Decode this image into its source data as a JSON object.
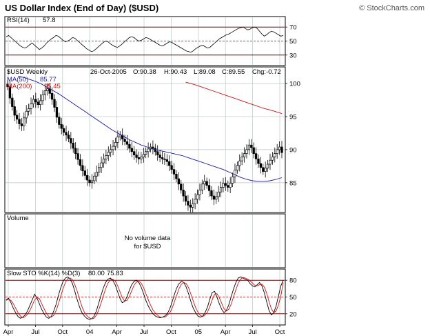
{
  "header": {
    "title": "US Dollar Index (End of Day) ($USD)",
    "brand": "© StockCharts.com"
  },
  "colors": {
    "frame": "#000000",
    "grid": "#b9c6c6",
    "ma50": "#1a1a9a",
    "ma200": "#cc1111",
    "k_line": "#000000",
    "d_line": "#cc1111",
    "candle": "#000000",
    "dashed_mid": "#aa0000"
  },
  "chart_data": [
    {
      "type": "line",
      "panel": "rsi",
      "label": "RSI(14)",
      "last_value": "57.8",
      "ylim": [
        15,
        85
      ],
      "y_ticks": [
        "70",
        "50",
        "30"
      ],
      "reference_lines": [
        70,
        50,
        30
      ],
      "series": [
        {
          "name": "RSI(14)",
          "values": [
            56,
            58,
            55,
            52,
            49,
            46,
            43,
            41,
            40,
            42,
            45,
            47,
            44,
            41,
            38,
            40,
            43,
            47,
            50,
            53,
            55,
            58,
            57,
            54,
            51,
            49,
            50,
            52,
            55,
            54,
            51,
            48,
            45,
            42,
            39,
            37,
            35,
            36,
            39,
            42,
            45,
            48,
            50,
            49,
            46,
            44,
            42,
            41,
            43,
            46,
            49,
            52,
            55,
            56,
            55,
            52,
            50,
            51,
            53,
            55,
            54,
            52,
            50,
            48,
            46,
            44,
            43,
            45,
            47,
            49,
            48,
            46,
            44,
            42,
            40,
            38,
            36,
            35,
            34,
            36,
            39,
            41,
            43,
            44,
            42,
            40,
            41,
            44,
            47,
            50,
            53,
            55,
            57,
            59,
            60,
            62,
            64,
            66,
            68,
            69,
            70,
            68,
            66,
            67,
            69,
            70,
            68,
            64,
            60,
            57,
            59,
            62,
            64,
            63,
            61,
            59,
            57,
            58
          ]
        }
      ]
    },
    {
      "type": "candlestick",
      "panel": "price",
      "label": "$USD Weekly",
      "date_text": "26-Oct-2005",
      "ohlc_text": {
        "open": "O:90.38",
        "high": "H:90.43",
        "low": "L:89.08",
        "close": "C:89.55",
        "change": "Chg:-0.72"
      },
      "legend": [
        {
          "name": "MA(50)",
          "value": "85.77"
        },
        {
          "name": "MA(200)",
          "value": "95.45"
        }
      ],
      "ylim": [
        80.5,
        102.5
      ],
      "y_ticks": [
        "100",
        "95",
        "90",
        "85"
      ],
      "closes": [
        99.5,
        97.8,
        96.5,
        95.2,
        94.6,
        93.9,
        93.6,
        94.8,
        95.8,
        96.2,
        96.9,
        97.6,
        97.2,
        96.8,
        97.4,
        98.3,
        98.9,
        99.2,
        98.5,
        97.6,
        96.4,
        94.9,
        93.8,
        93.2,
        92.6,
        92.2,
        91.7,
        91.0,
        90.2,
        89.4,
        88.5,
        87.6,
        86.8,
        86.1,
        85.4,
        85.0,
        85.3,
        86.0,
        86.6,
        87.3,
        88.0,
        88.6,
        89.1,
        89.6,
        90.0,
        90.5,
        91.1,
        91.9,
        92.2,
        91.6,
        91.2,
        90.8,
        90.2,
        89.7,
        89.2,
        88.8,
        88.6,
        88.9,
        89.3,
        89.7,
        90.1,
        90.4,
        90.2,
        89.7,
        89.2,
        88.8,
        88.6,
        88.5,
        88.2,
        87.6,
        87.0,
        86.3,
        85.6,
        84.8,
        83.9,
        83.0,
        82.2,
        81.6,
        81.3,
        81.8,
        82.5,
        83.2,
        83.9,
        84.8,
        85.2,
        84.6,
        83.8,
        83.0,
        82.5,
        82.9,
        83.6,
        84.3,
        84.9,
        84.6,
        84.3,
        84.9,
        85.9,
        86.9,
        87.6,
        88.3,
        88.9,
        89.4,
        90.0,
        90.7,
        90.3,
        89.4,
        88.6,
        87.9,
        87.3,
        86.7,
        87.2,
        87.8,
        88.4,
        88.9,
        89.4,
        90.0,
        90.4,
        89.55
      ],
      "ma50": [
        101.1,
        100.9,
        100.6,
        100.3,
        99.9,
        99.4,
        98.9,
        98.4,
        97.8,
        97.2,
        96.6,
        96.0,
        95.4,
        94.8,
        94.2,
        93.6,
        93.0,
        92.5,
        92.0,
        91.5,
        91.1,
        90.7,
        90.4,
        90.1,
        89.9,
        89.7,
        89.5,
        89.3,
        89.1,
        88.8,
        88.5,
        88.2,
        87.9,
        87.6,
        87.3,
        87.0,
        86.6,
        86.2,
        85.8,
        85.5,
        85.3,
        85.2,
        85.2,
        85.3,
        85.5,
        85.77
      ],
      "ma200": [
        100.2,
        99.8,
        99.3,
        98.8,
        98.3,
        97.8,
        97.3,
        96.8,
        96.3,
        95.9,
        95.45
      ]
    },
    {
      "type": "bar",
      "panel": "volume",
      "label": "Volume",
      "message": "No volume data for $USD"
    },
    {
      "type": "line",
      "panel": "stochastic",
      "label": "Slow STO %K(14) %D(3)",
      "k_value": "80.00",
      "d_value": "75.83",
      "ylim": [
        0,
        100
      ],
      "y_ticks": [
        "80",
        "50",
        "20"
      ],
      "reference_lines": [
        80,
        50,
        20
      ],
      "series": [
        {
          "name": "%K",
          "values": [
            45,
            48,
            40,
            30,
            22,
            15,
            12,
            14,
            18,
            25,
            35,
            45,
            55,
            48,
            38,
            28,
            20,
            14,
            12,
            15,
            24,
            36,
            52,
            66,
            78,
            84,
            86,
            82,
            74,
            60,
            45,
            32,
            22,
            16,
            12,
            10,
            11,
            15,
            24,
            38,
            52,
            66,
            76,
            82,
            84,
            80,
            72,
            60,
            48,
            40,
            42,
            50,
            62,
            72,
            78,
            80,
            76,
            68,
            56,
            44,
            34,
            26,
            20,
            16,
            14,
            13,
            14,
            16,
            20,
            28,
            40,
            54,
            66,
            74,
            78,
            76,
            68,
            56,
            42,
            30,
            22,
            16,
            14,
            16,
            22,
            32,
            46,
            58,
            60,
            50,
            38,
            28,
            22,
            26,
            36,
            50,
            64,
            76,
            84,
            86,
            84,
            82,
            80,
            74,
            70,
            68,
            72,
            76,
            70,
            58,
            42,
            26,
            18,
            22,
            34,
            52,
            70,
            80
          ]
        },
        {
          "name": "%D",
          "values": [
            44,
            46,
            44,
            38,
            30,
            22,
            16,
            13,
            15,
            19,
            26,
            35,
            45,
            49,
            47,
            38,
            29,
            21,
            15,
            14,
            17,
            25,
            37,
            51,
            65,
            76,
            83,
            84,
            81,
            72,
            60,
            46,
            33,
            23,
            17,
            13,
            11,
            12,
            17,
            26,
            38,
            52,
            65,
            75,
            81,
            82,
            79,
            71,
            60,
            49,
            43,
            44,
            51,
            61,
            71,
            77,
            78,
            75,
            67,
            56,
            45,
            35,
            27,
            21,
            17,
            14,
            14,
            14,
            17,
            21,
            29,
            41,
            53,
            65,
            73,
            76,
            74,
            67,
            55,
            43,
            31,
            23,
            17,
            15,
            18,
            23,
            33,
            45,
            55,
            56,
            49,
            39,
            29,
            25,
            28,
            37,
            50,
            63,
            75,
            82,
            85,
            84,
            82,
            79,
            75,
            71,
            70,
            72,
            73,
            68,
            57,
            42,
            29,
            22,
            25,
            36,
            52,
            75.83
          ]
        }
      ]
    }
  ],
  "x_axis": {
    "tick_labels": [
      "Apr",
      "Jul",
      "Oct",
      "04",
      "Apr",
      "Jul",
      "Oct",
      "05",
      "Apr",
      "Jul",
      "Oct"
    ]
  }
}
